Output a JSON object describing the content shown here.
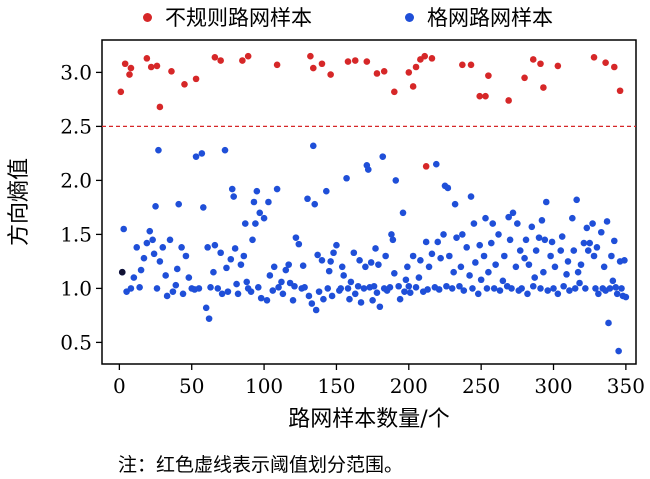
{
  "legend": [
    {
      "label": "不规则路网样本",
      "color": "#d62728"
    },
    {
      "label": "格网路网样本",
      "color": "#1f4fd8"
    }
  ],
  "note": "注：红色虚线表示阈值划分范围。",
  "chart_data": {
    "type": "scatter",
    "xlabel": "路网样本数量/个",
    "ylabel": "方向熵值",
    "xlim": [
      -12,
      357
    ],
    "ylim": [
      0.3,
      3.3
    ],
    "xticks": [
      0,
      50,
      100,
      150,
      200,
      250,
      300,
      350
    ],
    "yticks": [
      0.5,
      1.0,
      1.5,
      2.0,
      2.5,
      3.0
    ],
    "ytick_labels": [
      "0.5",
      "1.0",
      "1.5",
      "2.0",
      "2.5",
      "3.0"
    ],
    "threshold": {
      "y": 2.5,
      "color": "#d62728",
      "style": "dashed"
    },
    "series": [
      {
        "name": "不规则路网样本",
        "color": "#d62728",
        "points": [
          [
            1,
            2.82
          ],
          [
            4,
            3.08
          ],
          [
            7,
            2.98
          ],
          [
            8,
            3.04
          ],
          [
            19,
            3.13
          ],
          [
            22,
            3.05
          ],
          [
            26,
            3.06
          ],
          [
            28,
            2.68
          ],
          [
            36,
            3.01
          ],
          [
            45,
            2.89
          ],
          [
            53,
            2.94
          ],
          [
            66,
            3.14
          ],
          [
            70,
            3.11
          ],
          [
            85,
            3.11
          ],
          [
            89,
            3.15
          ],
          [
            109,
            3.07
          ],
          [
            132,
            3.15
          ],
          [
            134,
            3.04
          ],
          [
            140,
            3.08
          ],
          [
            146,
            2.98
          ],
          [
            158,
            3.1
          ],
          [
            163,
            3.11
          ],
          [
            171,
            3.1
          ],
          [
            178,
            2.99
          ],
          [
            183,
            3.01
          ],
          [
            190,
            2.82
          ],
          [
            200,
            3.0
          ],
          [
            203,
            2.87
          ],
          [
            205,
            3.05
          ],
          [
            208,
            3.12
          ],
          [
            211,
            3.15
          ],
          [
            216,
            3.13
          ],
          [
            237,
            3.07
          ],
          [
            243,
            3.07
          ],
          [
            249,
            2.78
          ],
          [
            253,
            2.78
          ],
          [
            255,
            2.97
          ],
          [
            269,
            2.74
          ],
          [
            280,
            2.95
          ],
          [
            286,
            3.12
          ],
          [
            291,
            3.08
          ],
          [
            293,
            2.86
          ],
          [
            303,
            3.06
          ],
          [
            328,
            3.14
          ],
          [
            336,
            3.09
          ],
          [
            342,
            3.05
          ],
          [
            346,
            2.83
          ],
          [
            212,
            2.13
          ]
        ]
      },
      {
        "name": "格网路网样本",
        "color": "#1f4fd8",
        "points": [
          [
            2,
            1.15
          ],
          [
            3,
            1.55
          ],
          [
            5,
            0.97
          ],
          [
            8,
            1.0
          ],
          [
            10,
            1.1
          ],
          [
            12,
            1.38
          ],
          [
            14,
            1.01
          ],
          [
            15,
            1.17
          ],
          [
            17,
            1.28
          ],
          [
            19,
            1.42
          ],
          [
            21,
            1.53
          ],
          [
            23,
            1.45
          ],
          [
            24,
            1.32
          ],
          [
            25,
            1.76
          ],
          [
            26,
            1.0
          ],
          [
            27,
            2.28
          ],
          [
            28,
            1.25
          ],
          [
            30,
            1.38
          ],
          [
            32,
            1.12
          ],
          [
            33,
            0.93
          ],
          [
            35,
            1.45
          ],
          [
            37,
            0.97
          ],
          [
            39,
            1.03
          ],
          [
            40,
            1.18
          ],
          [
            41,
            1.78
          ],
          [
            43,
            1.38
          ],
          [
            44,
            0.95
          ],
          [
            46,
            1.3
          ],
          [
            48,
            1.1
          ],
          [
            50,
            1.0
          ],
          [
            52,
            0.99
          ],
          [
            53,
            2.22
          ],
          [
            55,
            1.0
          ],
          [
            57,
            2.25
          ],
          [
            58,
            1.75
          ],
          [
            60,
            0.82
          ],
          [
            61,
            1.38
          ],
          [
            62,
            0.72
          ],
          [
            63,
            1.01
          ],
          [
            65,
            1.15
          ],
          [
            66,
            1.4
          ],
          [
            68,
            1.0
          ],
          [
            70,
            1.33
          ],
          [
            71,
            0.95
          ],
          [
            73,
            2.28
          ],
          [
            74,
            1.19
          ],
          [
            75,
            0.97
          ],
          [
            77,
            1.27
          ],
          [
            78,
            1.92
          ],
          [
            79,
            1.85
          ],
          [
            80,
            1.37
          ],
          [
            81,
            1.04
          ],
          [
            82,
            0.95
          ],
          [
            84,
            1.22
          ],
          [
            86,
            1.3
          ],
          [
            87,
            1.6
          ],
          [
            88,
            1.06
          ],
          [
            89,
            1.0
          ],
          [
            91,
            0.97
          ],
          [
            92,
            1.45
          ],
          [
            93,
            1.8
          ],
          [
            94,
            1.6
          ],
          [
            95,
            1.9
          ],
          [
            96,
            1.01
          ],
          [
            97,
            1.7
          ],
          [
            98,
            0.91
          ],
          [
            100,
            1.65
          ],
          [
            102,
            0.89
          ],
          [
            103,
            1.8
          ],
          [
            104,
            1.12
          ],
          [
            106,
            0.98
          ],
          [
            107,
            1.2
          ],
          [
            109,
            1.92
          ],
          [
            110,
            1.01
          ],
          [
            112,
            1.06
          ],
          [
            113,
            0.95
          ],
          [
            115,
            1.17
          ],
          [
            117,
            1.22
          ],
          [
            118,
            1.05
          ],
          [
            120,
            0.89
          ],
          [
            121,
            1.02
          ],
          [
            122,
            1.47
          ],
          [
            124,
            1.41
          ],
          [
            126,
            1.0
          ],
          [
            127,
            1.21
          ],
          [
            128,
            1.01
          ],
          [
            130,
            1.83
          ],
          [
            131,
            0.93
          ],
          [
            133,
            0.86
          ],
          [
            134,
            2.32
          ],
          [
            135,
            1.78
          ],
          [
            136,
            0.8
          ],
          [
            137,
            1.31
          ],
          [
            138,
            0.97
          ],
          [
            140,
            1.26
          ],
          [
            141,
            0.9
          ],
          [
            143,
            1.9
          ],
          [
            144,
            1.0
          ],
          [
            145,
            1.16
          ],
          [
            146,
            1.25
          ],
          [
            147,
            0.93
          ],
          [
            148,
            1.33
          ],
          [
            150,
            1.4
          ],
          [
            152,
            0.98
          ],
          [
            153,
            1.0
          ],
          [
            154,
            1.2
          ],
          [
            155,
            1.12
          ],
          [
            157,
            2.02
          ],
          [
            158,
            1.0
          ],
          [
            159,
            0.9
          ],
          [
            160,
            1.06
          ],
          [
            162,
            1.33
          ],
          [
            163,
            0.95
          ],
          [
            165,
            1.02
          ],
          [
            166,
            1.26
          ],
          [
            167,
            0.87
          ],
          [
            169,
            1.0
          ],
          [
            170,
            1.2
          ],
          [
            171,
            2.14
          ],
          [
            172,
            2.1
          ],
          [
            173,
            1.01
          ],
          [
            174,
            1.24
          ],
          [
            175,
            0.89
          ],
          [
            176,
            1.02
          ],
          [
            177,
            1.37
          ],
          [
            178,
            0.96
          ],
          [
            179,
            1.22
          ],
          [
            180,
            0.83
          ],
          [
            182,
            2.22
          ],
          [
            183,
            1.0
          ],
          [
            184,
            1.3
          ],
          [
            185,
            0.98
          ],
          [
            187,
            1.01
          ],
          [
            188,
            1.5
          ],
          [
            189,
            1.45
          ],
          [
            190,
            1.14
          ],
          [
            191,
            2.0
          ],
          [
            193,
            1.02
          ],
          [
            194,
            0.9
          ],
          [
            196,
            1.7
          ],
          [
            197,
            0.97
          ],
          [
            198,
            1.08
          ],
          [
            199,
            1.2
          ],
          [
            200,
            1.02
          ],
          [
            201,
            0.96
          ],
          [
            203,
            1.3
          ],
          [
            205,
            1.01
          ],
          [
            207,
            1.1
          ],
          [
            208,
            1.26
          ],
          [
            210,
            0.97
          ],
          [
            212,
            1.43
          ],
          [
            213,
            0.99
          ],
          [
            214,
            1.2
          ],
          [
            216,
            1.32
          ],
          [
            218,
            1.01
          ],
          [
            219,
            2.15
          ],
          [
            220,
            1.43
          ],
          [
            221,
            0.99
          ],
          [
            222,
            1.28
          ],
          [
            224,
            1.5
          ],
          [
            225,
            1.95
          ],
          [
            226,
            1.02
          ],
          [
            227,
            1.93
          ],
          [
            228,
            1.3
          ],
          [
            230,
            1.0
          ],
          [
            231,
            1.15
          ],
          [
            232,
            1.78
          ],
          [
            233,
            1.47
          ],
          [
            235,
            1.02
          ],
          [
            236,
            1.2
          ],
          [
            237,
            1.5
          ],
          [
            238,
            0.98
          ],
          [
            240,
            1.38
          ],
          [
            242,
            1.12
          ],
          [
            243,
            1.85
          ],
          [
            244,
            1.0
          ],
          [
            245,
            1.6
          ],
          [
            246,
            1.24
          ],
          [
            248,
            0.95
          ],
          [
            249,
            1.4
          ],
          [
            250,
            1.08
          ],
          [
            252,
            1.3
          ],
          [
            253,
            1.65
          ],
          [
            254,
            1.0
          ],
          [
            255,
            1.15
          ],
          [
            257,
            1.42
          ],
          [
            258,
            1.6
          ],
          [
            259,
            1.0
          ],
          [
            260,
            1.22
          ],
          [
            262,
            1.5
          ],
          [
            263,
            0.98
          ],
          [
            265,
            1.07
          ],
          [
            266,
            1.3
          ],
          [
            268,
            1.02
          ],
          [
            269,
            1.66
          ],
          [
            270,
            1.45
          ],
          [
            271,
            1.0
          ],
          [
            272,
            1.7
          ],
          [
            274,
            1.2
          ],
          [
            275,
            1.6
          ],
          [
            276,
            0.98
          ],
          [
            277,
            1.35
          ],
          [
            278,
            1.0
          ],
          [
            280,
            1.28
          ],
          [
            281,
            1.45
          ],
          [
            282,
            0.95
          ],
          [
            283,
            1.22
          ],
          [
            285,
            1.57
          ],
          [
            286,
            1.02
          ],
          [
            287,
            1.1
          ],
          [
            288,
            1.35
          ],
          [
            290,
            1.47
          ],
          [
            291,
            1.0
          ],
          [
            292,
            1.63
          ],
          [
            293,
            1.15
          ],
          [
            294,
            1.45
          ],
          [
            295,
            1.8
          ],
          [
            296,
            0.98
          ],
          [
            298,
            1.3
          ],
          [
            299,
            1.43
          ],
          [
            300,
            1.0
          ],
          [
            301,
            1.2
          ],
          [
            303,
            0.95
          ],
          [
            305,
            1.35
          ],
          [
            306,
            1.48
          ],
          [
            307,
            1.02
          ],
          [
            309,
            1.13
          ],
          [
            310,
            1.25
          ],
          [
            311,
            0.98
          ],
          [
            313,
            1.65
          ],
          [
            314,
            1.35
          ],
          [
            315,
            1.0
          ],
          [
            316,
            1.82
          ],
          [
            317,
            1.15
          ],
          [
            318,
            1.05
          ],
          [
            319,
            1.22
          ],
          [
            321,
            1.42
          ],
          [
            322,
            1.0
          ],
          [
            323,
            1.56
          ],
          [
            324,
            1.35
          ],
          [
            325,
            1.42
          ],
          [
            327,
            1.6
          ],
          [
            328,
            1.3
          ],
          [
            329,
            1.0
          ],
          [
            330,
            1.38
          ],
          [
            331,
            0.95
          ],
          [
            333,
            1.52
          ],
          [
            334,
            1.0
          ],
          [
            335,
            1.2
          ],
          [
            336,
            0.98
          ],
          [
            337,
            1.62
          ],
          [
            338,
            0.68
          ],
          [
            339,
            1.0
          ],
          [
            340,
            1.3
          ],
          [
            341,
            1.07
          ],
          [
            342,
            1.44
          ],
          [
            343,
            1.01
          ],
          [
            344,
            0.95
          ],
          [
            345,
            0.42
          ],
          [
            346,
            1.25
          ],
          [
            347,
            1.0
          ],
          [
            348,
            0.93
          ],
          [
            349,
            1.26
          ],
          [
            350,
            0.92
          ]
        ]
      }
    ]
  }
}
